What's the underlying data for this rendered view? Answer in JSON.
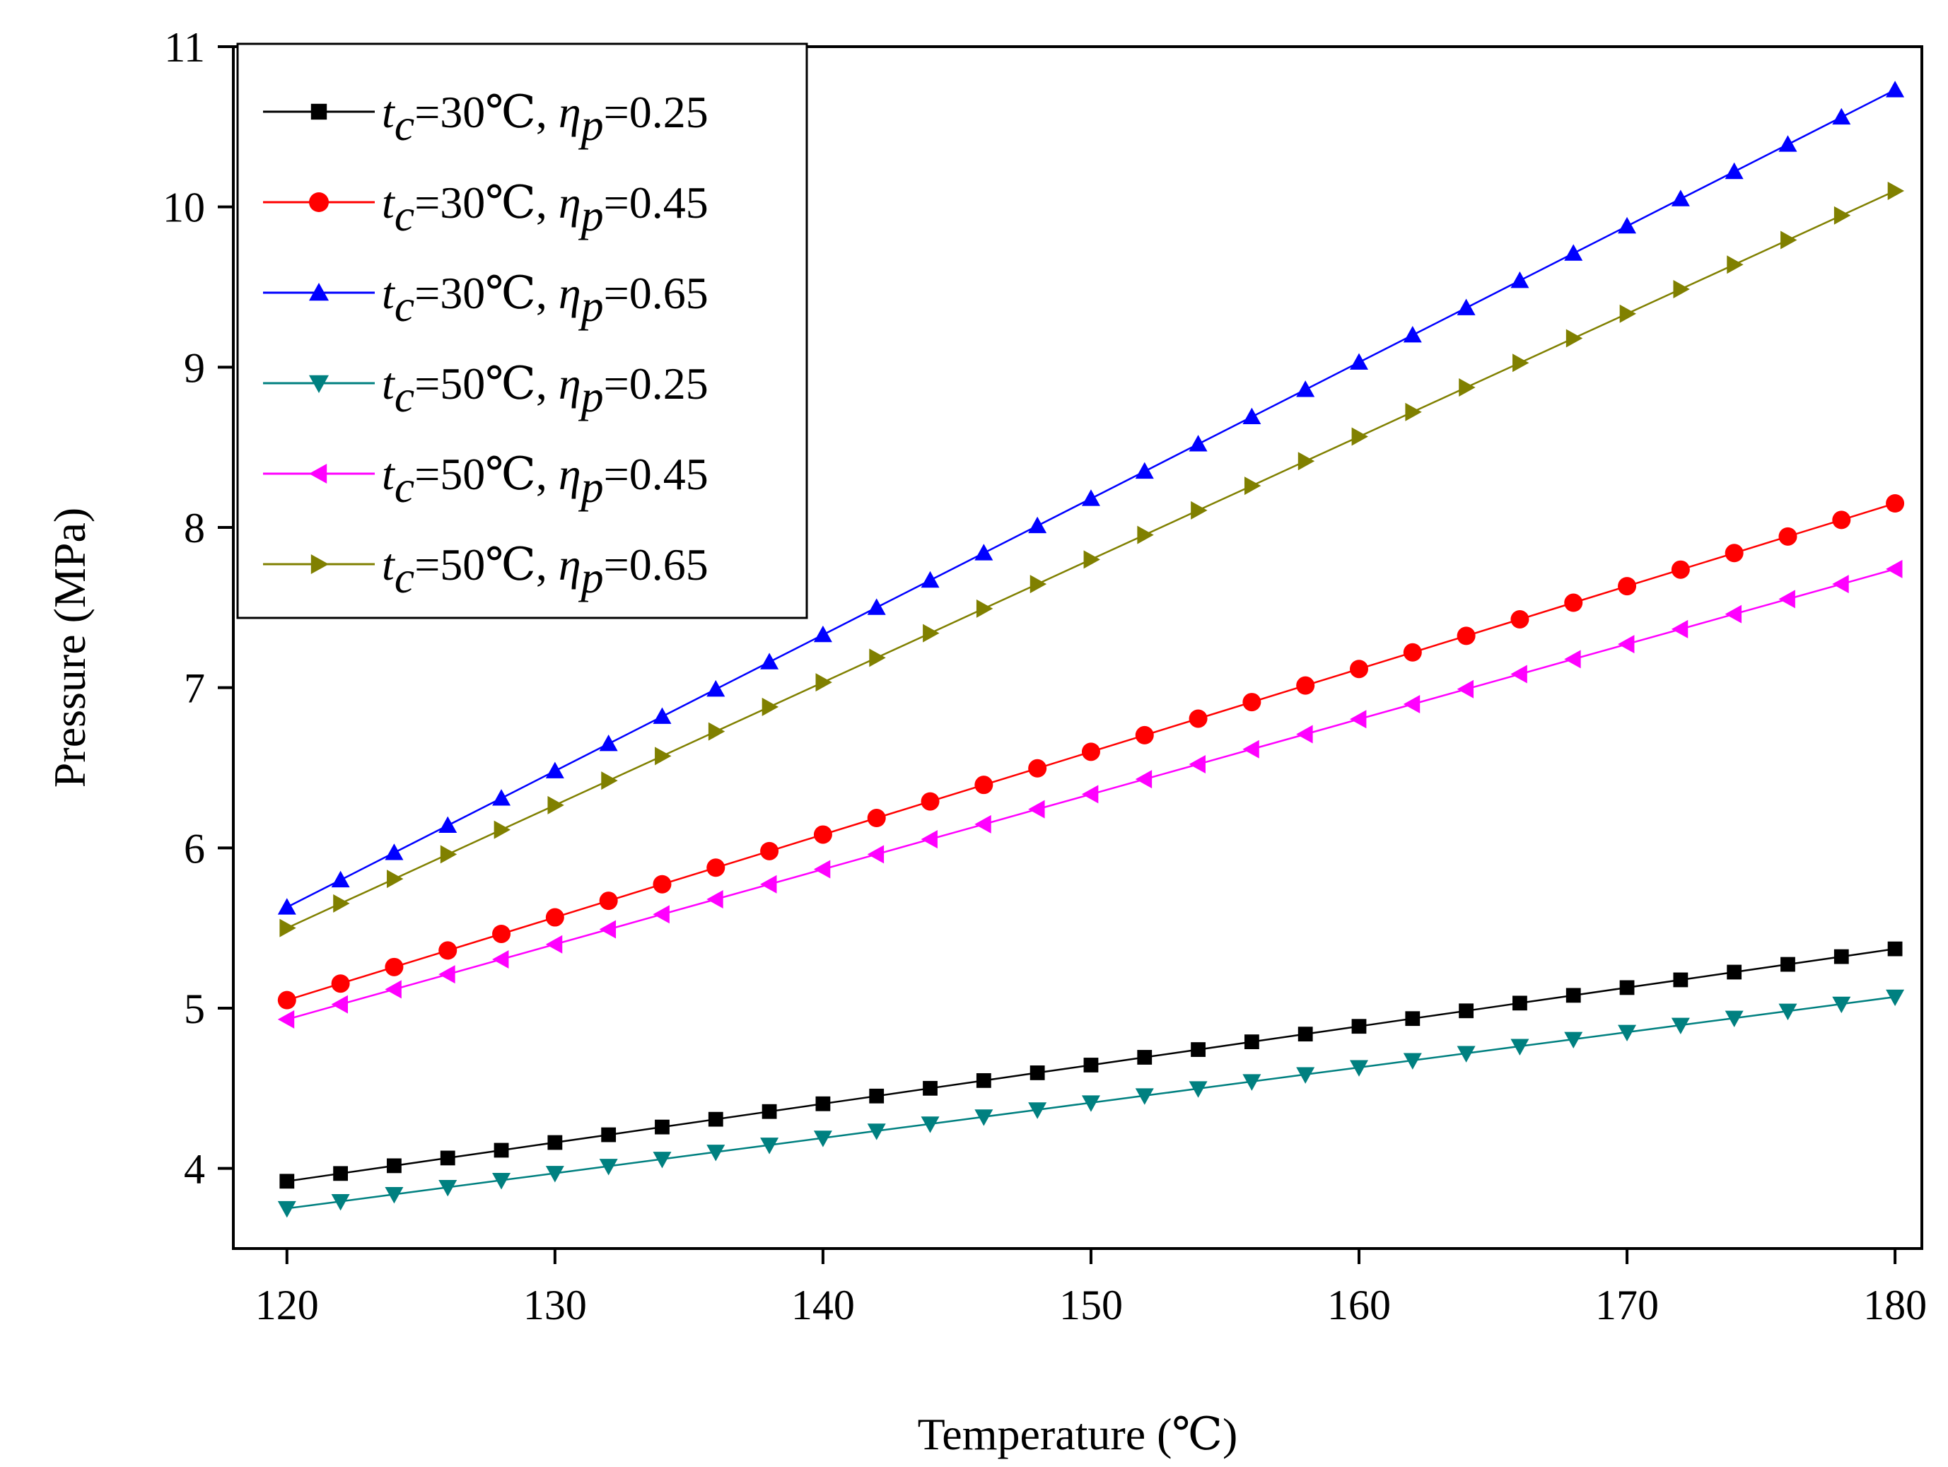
{
  "chart_data": {
    "type": "line",
    "title": "",
    "xlabel": "Temperature (℃)",
    "ylabel": "Pressure (MPa)",
    "xlim": [
      118,
      181
    ],
    "ylim": [
      3.5,
      11
    ],
    "xticks": [
      120,
      130,
      140,
      150,
      160,
      170,
      180
    ],
    "yticks": [
      4,
      5,
      6,
      7,
      8,
      9,
      10,
      11
    ],
    "grid": false,
    "legend_position": "top-left",
    "x": [
      120,
      122,
      124,
      126,
      128,
      130,
      132,
      134,
      136,
      138,
      140,
      142,
      144,
      146,
      148,
      150,
      152,
      154,
      156,
      158,
      160,
      162,
      164,
      166,
      168,
      170,
      172,
      174,
      176,
      178,
      180
    ],
    "series": [
      {
        "name": "tc=30℃, ηp=0.25",
        "legend": {
          "t": "t",
          "c": "c",
          "mid": "=30℃, ",
          "eta": "η",
          "p": "p",
          "val": "=0.25"
        },
        "color": "#000000",
        "marker": "square",
        "y_start": 3.92,
        "y_end": 5.37
      },
      {
        "name": "tc=30℃, ηp=0.45",
        "legend": {
          "t": "t",
          "c": "c",
          "mid": "=30℃, ",
          "eta": "η",
          "p": "p",
          "val": "=0.45"
        },
        "color": "#ff0000",
        "marker": "circle",
        "y_start": 5.05,
        "y_end": 8.15
      },
      {
        "name": "tc=30℃, ηp=0.65",
        "legend": {
          "t": "t",
          "c": "c",
          "mid": "=30℃, ",
          "eta": "η",
          "p": "p",
          "val": "=0.65"
        },
        "color": "#0000ff",
        "marker": "triangle-up",
        "y_start": 5.63,
        "y_end": 10.73
      },
      {
        "name": "tc=50℃, ηp=0.25",
        "legend": {
          "t": "t",
          "c": "c",
          "mid": "=50℃, ",
          "eta": "η",
          "p": "p",
          "val": "=0.25"
        },
        "color": "#008080",
        "marker": "triangle-down",
        "y_start": 3.75,
        "y_end": 5.07
      },
      {
        "name": "tc=50℃, ηp=0.45",
        "legend": {
          "t": "t",
          "c": "c",
          "mid": "=50℃, ",
          "eta": "η",
          "p": "p",
          "val": "=0.45"
        },
        "color": "#ff00ff",
        "marker": "triangle-left",
        "y_start": 4.93,
        "y_end": 7.74
      },
      {
        "name": "tc=50℃, ηp=0.65",
        "legend": {
          "t": "t",
          "c": "c",
          "mid": "=50℃, ",
          "eta": "η",
          "p": "p",
          "val": "=0.65"
        },
        "color": "#808000",
        "marker": "triangle-right",
        "y_start": 5.5,
        "y_end": 10.1
      }
    ]
  }
}
